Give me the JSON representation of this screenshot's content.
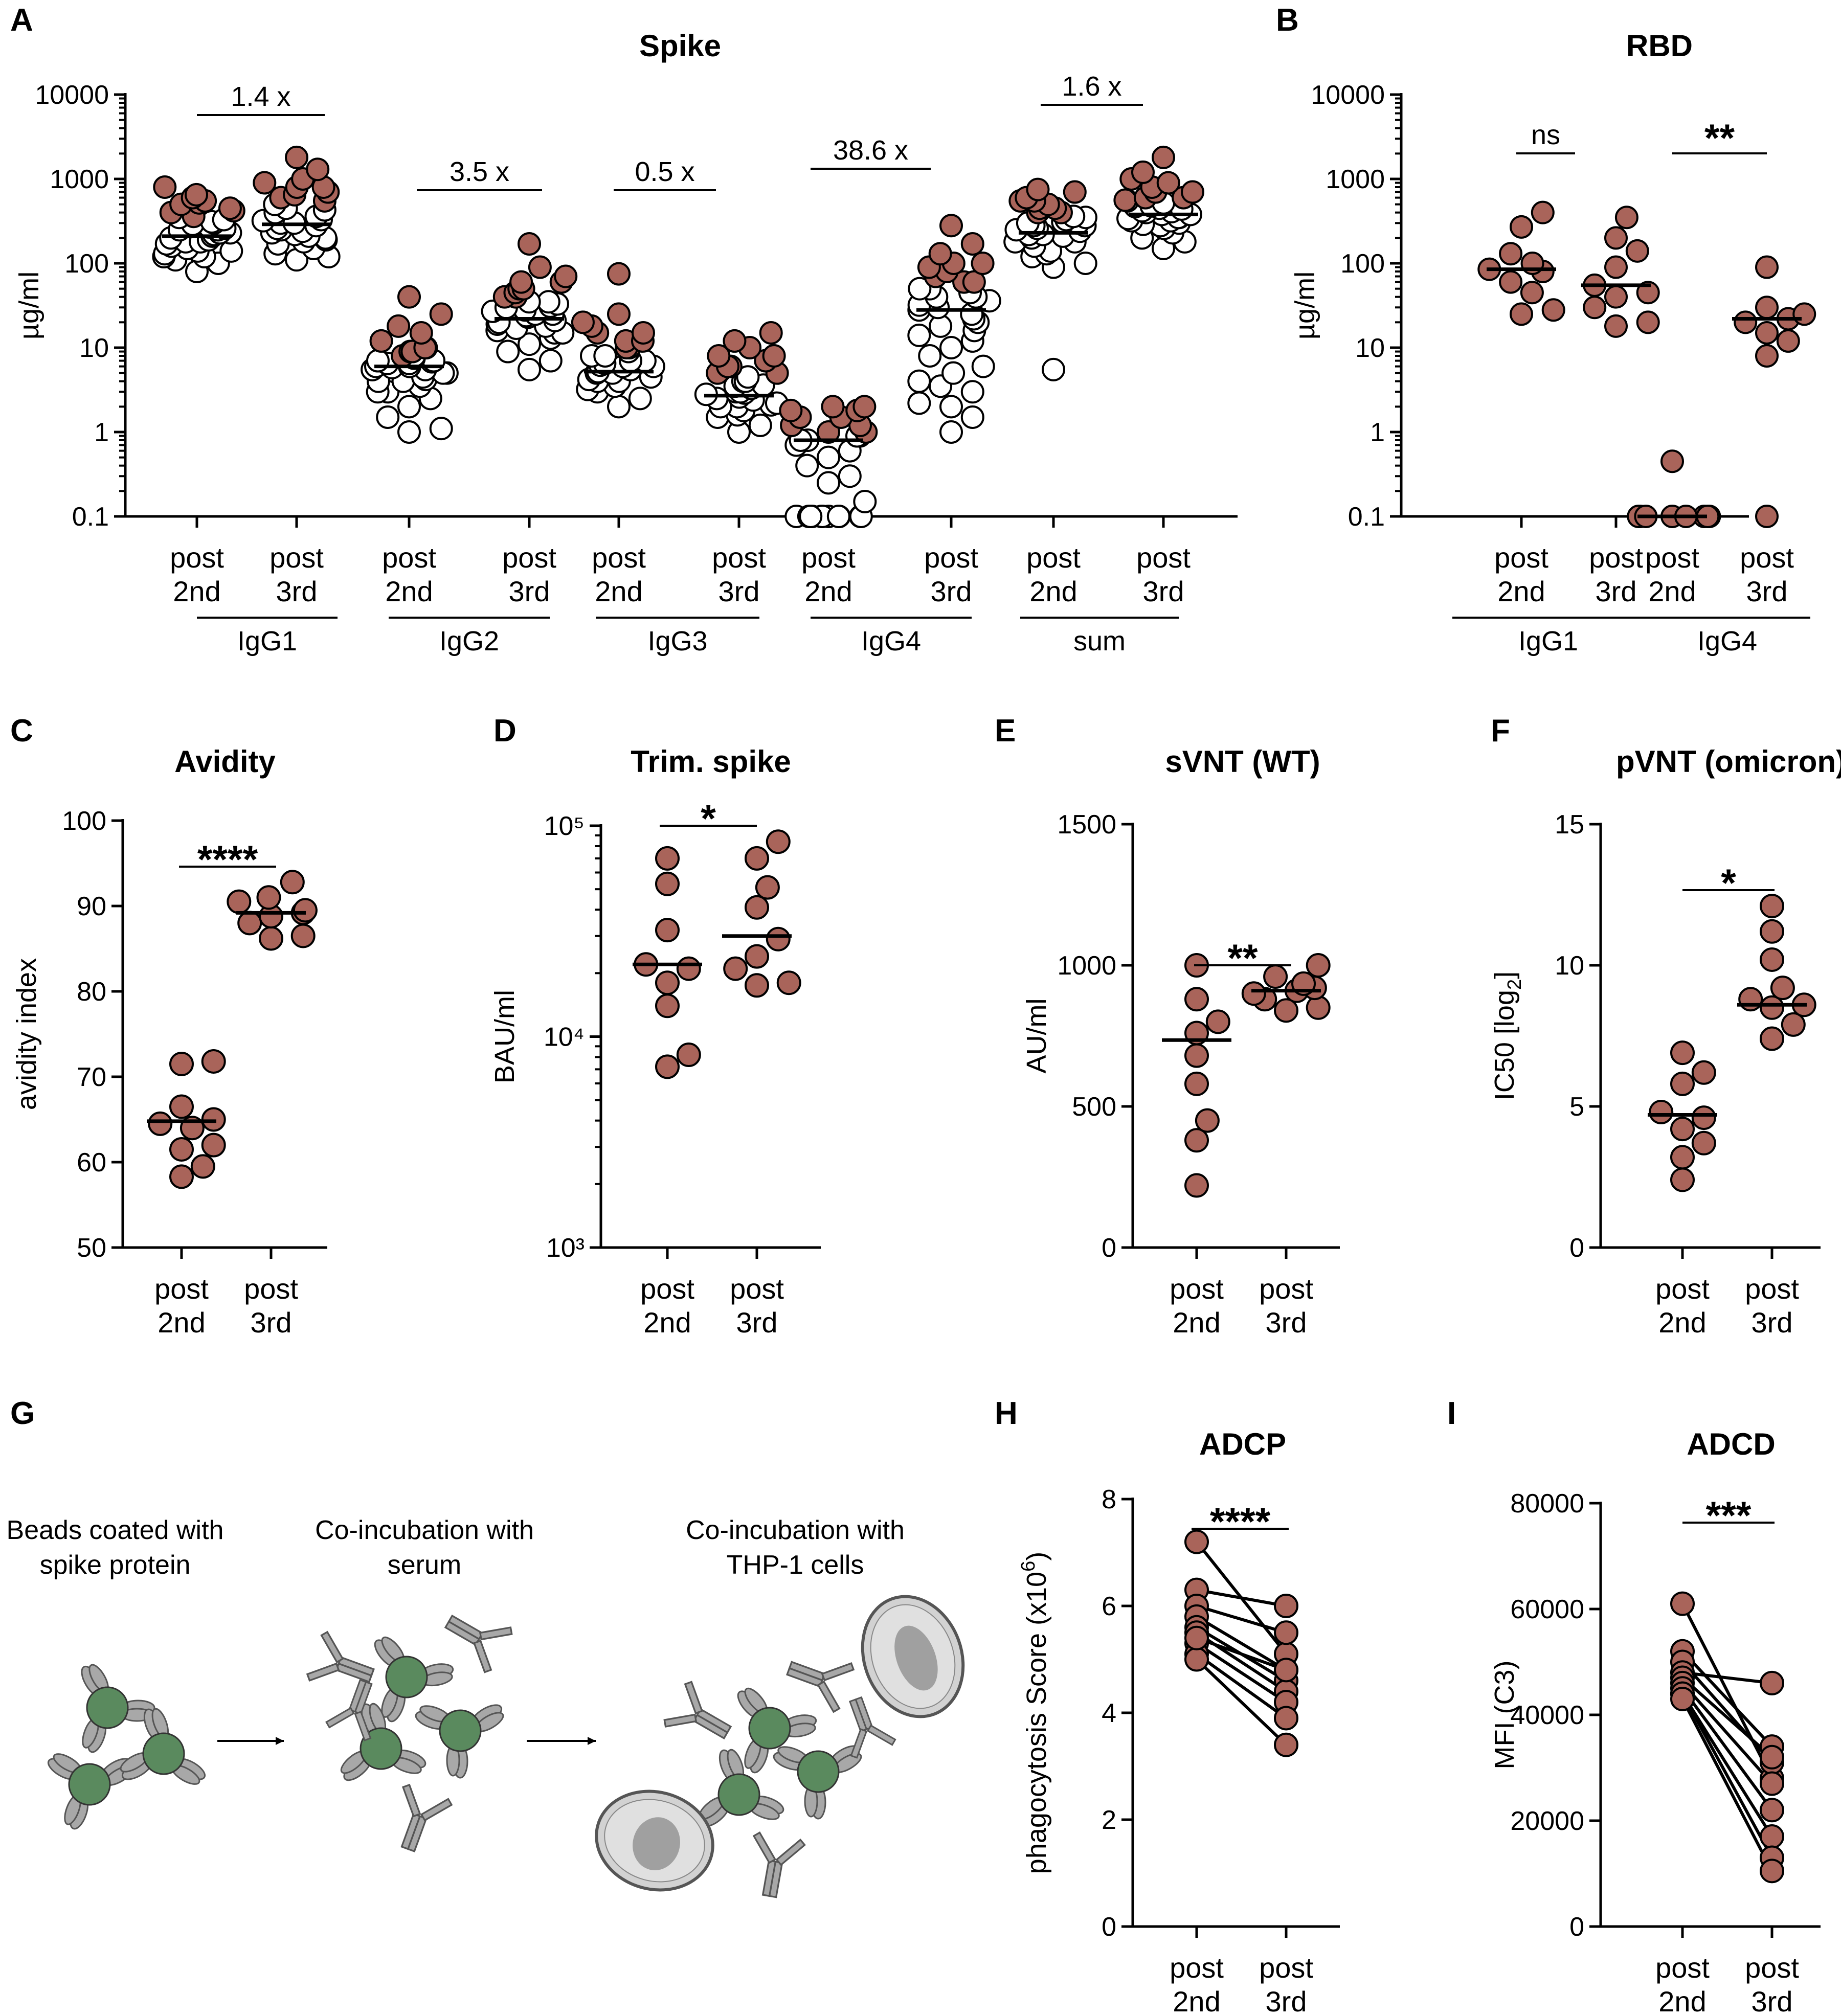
{
  "colors": {
    "filled": "#A9645A",
    "open": "#FFFFFF",
    "stroke": "#000000",
    "bead": "#5A8A5E",
    "antibody": "#A8A8A8",
    "cell": "#D2D2D2"
  },
  "chart_data": [
    {
      "panel": "A",
      "type": "scatter",
      "title": "Spike",
      "ylabel": "µg/ml",
      "scale": "log",
      "ylim": [
        0.1,
        10000
      ],
      "yticks": [
        "0.1",
        "1",
        "10",
        "100",
        "1000",
        "10000"
      ],
      "groups": [
        {
          "label": "IgG1",
          "ratio": "1.4 x",
          "cols": [
            {
              "l1": "post",
              "l2": "2nd",
              "median": 210,
              "filled": [
                350,
                650,
                800,
                420,
                250,
                180,
                520,
                140,
                300,
                230
              ],
              "open": [
                80,
                100,
                110,
                120,
                130,
                140,
                150,
                160,
                170,
                180,
                190,
                200,
                210,
                220,
                230,
                250,
                270,
                290,
                310,
                330,
                360,
                400,
                450,
                500,
                550,
                600,
                120,
                260
              ]
            },
            {
              "l1": "post",
              "l2": "3rd",
              "median": 290,
              "filled": [
                900,
                650,
                550,
                300,
                220,
                180,
                430,
                800,
                120,
                260
              ],
              "open": [
                110,
                130,
                150,
                170,
                190,
                210,
                230,
                250,
                280,
                300,
                330,
                360,
                400,
                450,
                500,
                600,
                700,
                800,
                1000,
                1800,
                1300,
                200,
                240,
                320
              ]
            }
          ]
        },
        {
          "label": "IgG2",
          "ratio": "3.5 x",
          "cols": [
            {
              "l1": "post",
              "l2": "2nd",
              "median": 6,
              "filled": [
                8,
                6,
                5,
                4,
                7,
                9,
                3,
                10,
                5.5,
                6.5
              ],
              "open": [
                1,
                1.1,
                1.5,
                2,
                2.5,
                3,
                3.5,
                4,
                4.5,
                5,
                5.5,
                6,
                6.5,
                7,
                7.5,
                8,
                9,
                10,
                12,
                15,
                18,
                25,
                40,
                4.2,
                5.8,
                6.8
              ]
            },
            {
              "l1": "post",
              "l2": "3rd",
              "median": 22,
              "filled": [
                170,
                90,
                60,
                40,
                30,
                20,
                15,
                50,
                25,
                35
              ],
              "open": [
                5.5,
                7,
                9,
                11,
                13,
                15,
                17,
                19,
                21,
                23,
                25,
                28,
                31,
                35,
                40,
                45,
                50,
                60,
                70,
                16,
                18,
                24,
                27,
                33
              ]
            }
          ]
        },
        {
          "label": "IgG3",
          "ratio": "0.5 x",
          "cols": [
            {
              "l1": "post",
              "l2": "2nd",
              "median": 5.2,
              "filled": [
                75,
                20,
                15,
                10,
                8,
                6,
                4,
                12,
                5,
                7
              ],
              "open": [
                2,
                2.5,
                3,
                3.5,
                4,
                4.5,
                5,
                5.5,
                6,
                6.5,
                7,
                8,
                9,
                10,
                12,
                15,
                18,
                25,
                3.2,
                4.2,
                5.2,
                6.2
              ]
            },
            {
              "l1": "post",
              "l2": "3rd",
              "median": 2.7,
              "filled": [
                15,
                12,
                6,
                4,
                3,
                2.5,
                2,
                8,
                3.5,
                5
              ],
              "open": [
                1,
                1.2,
                1.5,
                1.8,
                2,
                2.2,
                2.4,
                2.6,
                2.8,
                3,
                3.3,
                3.6,
                4,
                4.5,
                5,
                6,
                7,
                8,
                10,
                1.6,
                2.1,
                2.9
              ]
            }
          ]
        },
        {
          "label": "IgG4",
          "ratio": "38.6 x",
          "cols": [
            {
              "l1": "post",
              "l2": "2nd",
              "median": 0.8,
              "filled": [
                2,
                1.8,
                1.5,
                1.2,
                1,
                0.9,
                0.8,
                0.1,
                0.1,
                0.1
              ],
              "open": [
                0.1,
                0.1,
                0.1,
                0.1,
                0.1,
                0.1,
                0.1,
                0.1,
                0.1,
                0.1,
                0.15,
                0.25,
                0.3,
                0.4,
                0.5,
                0.6,
                0.7,
                0.8,
                0.9,
                1,
                1.2,
                1.5,
                1.8,
                2
              ]
            },
            {
              "l1": "post",
              "l2": "3rd",
              "median": 28,
              "filled": [
                280,
                170,
                100,
                60,
                50,
                40,
                30,
                2.2,
                3.5,
                130
              ],
              "open": [
                1,
                1.5,
                2,
                3,
                4,
                5,
                6,
                8,
                10,
                12,
                14,
                16,
                18,
                20,
                22,
                25,
                28,
                32,
                36,
                40,
                45,
                50,
                60,
                70,
                80,
                90,
                100
              ]
            }
          ]
        },
        {
          "label": "sum",
          "ratio": "1.6 x",
          "cols": [
            {
              "l1": "post",
              "l2": "2nd",
              "median": 230,
              "filled": [
                750,
                550,
                450,
                350,
                280,
                220,
                180,
                130,
                300,
                400
              ],
              "open": [
                5.5,
                90,
                100,
                120,
                140,
                160,
                180,
                200,
                220,
                240,
                260,
                280,
                300,
                330,
                360,
                400,
                450,
                500,
                550,
                600,
                700,
                210,
                250,
                310
              ]
            },
            {
              "l1": "post",
              "l2": "3rd",
              "median": 380,
              "filled": [
                1000,
                700,
                550,
                450,
                380,
                320,
                280,
                600,
                350,
                420
              ],
              "open": [
                150,
                180,
                200,
                230,
                260,
                290,
                320,
                350,
                380,
                410,
                440,
                480,
                520,
                560,
                600,
                700,
                800,
                900,
                1200,
                1800,
                300,
                340,
                400,
                470
              ]
            }
          ]
        }
      ]
    },
    {
      "panel": "B",
      "type": "scatter",
      "title": "RBD",
      "ylabel": "µg/ml",
      "scale": "log",
      "ylim": [
        0.1,
        10000
      ],
      "yticks": [
        "0.1",
        "1",
        "10",
        "100",
        "1000",
        "10000"
      ],
      "groups": [
        {
          "label": "IgG1",
          "ratio": "ns",
          "cols": [
            {
              "l1": "post",
              "l2": "2nd",
              "median": 85,
              "filled": [
                400,
                270,
                130,
                100,
                85,
                80,
                60,
                45,
                28,
                25
              ],
              "open": []
            },
            {
              "l1": "post",
              "l2": "3rd",
              "median": 55,
              "filled": [
                350,
                200,
                140,
                90,
                55,
                45,
                40,
                30,
                20,
                18
              ],
              "open": []
            }
          ]
        },
        {
          "label": "IgG4",
          "ratio": "**",
          "cols": [
            {
              "l1": "post",
              "l2": "2nd",
              "median": 0.1,
              "filled": [
                0.45,
                0.1,
                0.1,
                0.1,
                0.1,
                0.1,
                0.1,
                0.1,
                0.1
              ],
              "open": []
            },
            {
              "l1": "post",
              "l2": "3rd",
              "median": 22,
              "filled": [
                90,
                30,
                25,
                20,
                15,
                12,
                8,
                0.1,
                22
              ],
              "open": []
            }
          ]
        }
      ]
    },
    {
      "panel": "C",
      "type": "scatter",
      "title": "Avidity",
      "ylabel": "avidity index",
      "scale": "linear",
      "ylim": [
        50,
        100
      ],
      "yticks": [
        "50",
        "60",
        "70",
        "80",
        "90",
        "100"
      ],
      "sig": "****",
      "cols": [
        {
          "l1": "post",
          "l2": "2nd",
          "median": 64.8,
          "filled": [
            71.8,
            71.5,
            66.5,
            65,
            64.5,
            64,
            62,
            61.5,
            59.5,
            58.3
          ]
        },
        {
          "l1": "post",
          "l2": "3rd",
          "median": 89.2,
          "filled": [
            92.8,
            91,
            90.5,
            89.5,
            89.2,
            88.8,
            88,
            86.5,
            86.2
          ]
        }
      ]
    },
    {
      "panel": "D",
      "type": "scatter",
      "title": "Trim. spike",
      "ylabel": "BAU/ml",
      "scale": "log",
      "ylim": [
        1000,
        100000
      ],
      "yticks": [
        "10³",
        "10⁴",
        "10⁵"
      ],
      "sig": "*",
      "cols": [
        {
          "l1": "post",
          "l2": "2nd",
          "median": 22000,
          "filled": [
            70000,
            53000,
            32000,
            22000,
            21000,
            18000,
            14000,
            8200,
            7200
          ]
        },
        {
          "l1": "post",
          "l2": "3rd",
          "median": 30000,
          "filled": [
            84000,
            70000,
            51000,
            41000,
            29000,
            24000,
            21000,
            18000,
            17500
          ]
        }
      ]
    },
    {
      "panel": "E",
      "type": "scatter",
      "title": "sVNT (WT)",
      "ylabel": "AU/ml",
      "scale": "linear",
      "ylim": [
        0,
        1500
      ],
      "yticks": [
        "0",
        "500",
        "1000",
        "1500"
      ],
      "sig": "**",
      "cols": [
        {
          "l1": "post",
          "l2": "2nd",
          "median": 735,
          "filled": [
            1000,
            880,
            800,
            760,
            680,
            580,
            450,
            380,
            220
          ]
        },
        {
          "l1": "post",
          "l2": "3rd",
          "median": 910,
          "filled": [
            1000,
            960,
            935,
            920,
            910,
            900,
            880,
            850,
            840
          ]
        }
      ]
    },
    {
      "panel": "F",
      "type": "scatter",
      "title": "pVNT (omicron)",
      "ylabel": "IC50 [log",
      "ylabel_sub": "2",
      "ylabel_end": "]",
      "scale": "linear",
      "ylim": [
        0,
        15
      ],
      "yticks": [
        "0",
        "5",
        "10",
        "15"
      ],
      "sig": "*",
      "cols": [
        {
          "l1": "post",
          "l2": "2nd",
          "median": 4.7,
          "filled": [
            6.9,
            6.2,
            5.8,
            4.8,
            4.6,
            4.2,
            3.7,
            3.2,
            2.4
          ]
        },
        {
          "l1": "post",
          "l2": "3rd",
          "median": 8.6,
          "filled": [
            12.1,
            11.2,
            10.2,
            9.2,
            8.8,
            8.6,
            8.5,
            7.9,
            7.4
          ]
        }
      ]
    },
    {
      "panel": "H",
      "type": "line",
      "title": "ADCP",
      "ylabel": "phagocytosis Score (x10",
      "ylabel_sup": "6",
      "ylabel_end": ")",
      "scale": "linear",
      "ylim": [
        0,
        8
      ],
      "yticks": [
        "0",
        "2",
        "4",
        "6",
        "8"
      ],
      "sig": "****",
      "x": [
        {
          "l1": "post",
          "l2": "2nd"
        },
        {
          "l1": "post",
          "l2": "3rd"
        }
      ],
      "pairs": [
        [
          7.2,
          5.1
        ],
        [
          6.3,
          6.0
        ],
        [
          6.0,
          5.5
        ],
        [
          5.8,
          4.8
        ],
        [
          5.6,
          4.6
        ],
        [
          5.5,
          4.4
        ],
        [
          5.3,
          4.2
        ],
        [
          5.1,
          3.9
        ],
        [
          5.0,
          3.4
        ],
        [
          5.4,
          4.8
        ]
      ]
    },
    {
      "panel": "I",
      "type": "line",
      "title": "ADCD",
      "ylabel": "MFI (C3)",
      "scale": "linear",
      "ylim": [
        0,
        80000
      ],
      "yticks": [
        "0",
        "20000",
        "40000",
        "60000",
        "80000"
      ],
      "sig": "***",
      "x": [
        {
          "l1": "post",
          "l2": "2nd"
        },
        {
          "l1": "post",
          "l2": "3rd"
        }
      ],
      "pairs": [
        [
          61000,
          28000
        ],
        [
          52000,
          34000
        ],
        [
          50000,
          31000
        ],
        [
          48000,
          46000
        ],
        [
          47000,
          32000
        ],
        [
          46000,
          27000
        ],
        [
          45000,
          22000
        ],
        [
          44000,
          17000
        ],
        [
          44000,
          13000
        ],
        [
          43000,
          10500
        ]
      ]
    }
  ],
  "panel_letters": [
    "A",
    "B",
    "C",
    "D",
    "E",
    "F",
    "G",
    "H",
    "I"
  ],
  "schematic": {
    "steps": [
      {
        "line1": "Beads coated with",
        "line2": "spike protein"
      },
      {
        "line1": "Co-incubation with",
        "line2": "serum"
      },
      {
        "line1": "Co-incubation with",
        "line2": "THP-1 cells"
      }
    ]
  }
}
